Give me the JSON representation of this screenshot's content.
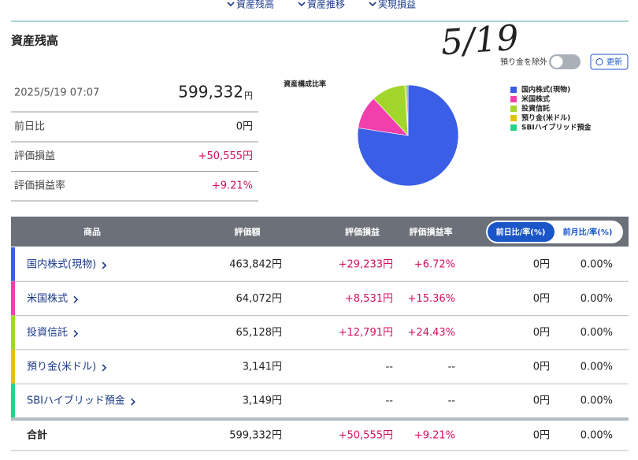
{
  "nav": [
    "資産残高",
    "資産推移",
    "実現損益"
  ],
  "heading": "資産残高",
  "annotation": "5/19",
  "summary": {
    "datetime": "2025/5/19 07:07",
    "total": "599,332",
    "total_unit": "円",
    "rows": [
      {
        "label": "前日比",
        "value": "0円"
      },
      {
        "label": "評価損益",
        "value": "+50,555円"
      },
      {
        "label": "評価損益率",
        "value": "+9.21%"
      }
    ]
  },
  "controls": {
    "exclude": "預り金を除外",
    "refresh": "更新",
    "toggle_day": "前日比/率(%)",
    "toggle_month": "前月比/率(%)"
  },
  "chart_data": {
    "type": "pie",
    "title": "資産構成比率",
    "categories": [
      "国内株式(現物)",
      "米国株式",
      "投資信託",
      "預り金(米ドル)",
      "SBIハイブリッド預金"
    ],
    "values": [
      463842,
      64072,
      65128,
      3141,
      3149
    ],
    "colors": [
      "#3b5ee6",
      "#f23fae",
      "#a3d62b",
      "#e3c200",
      "#22d487"
    ]
  },
  "table": {
    "header": [
      "商品",
      "評価額",
      "評価損益",
      "評価損益率"
    ],
    "rows": [
      {
        "name": "国内株式(現物)",
        "valuation": "463,842円",
        "pl": "+29,233円",
        "rate": "+6.72%",
        "day": "0円",
        "month": "0.00%"
      },
      {
        "name": "米国株式",
        "valuation": "64,072円",
        "pl": "+8,531円",
        "rate": "+15.36%",
        "day": "0円",
        "month": "0.00%"
      },
      {
        "name": "投資信託",
        "valuation": "65,128円",
        "pl": "+12,791円",
        "rate": "+24.43%",
        "day": "0円",
        "month": "0.00%"
      },
      {
        "name": "預り金(米ドル)",
        "valuation": "3,141円",
        "pl": "--",
        "rate": "--",
        "day": "0円",
        "month": "0.00%"
      },
      {
        "name": "SBIハイブリッド預金",
        "valuation": "3,149円",
        "pl": "--",
        "rate": "--",
        "day": "0円",
        "month": "0.00%"
      }
    ],
    "total": {
      "name": "合計",
      "valuation": "599,332円",
      "pl": "+50,555円",
      "rate": "+9.21%",
      "day": "0円",
      "month": "0.00%"
    }
  }
}
